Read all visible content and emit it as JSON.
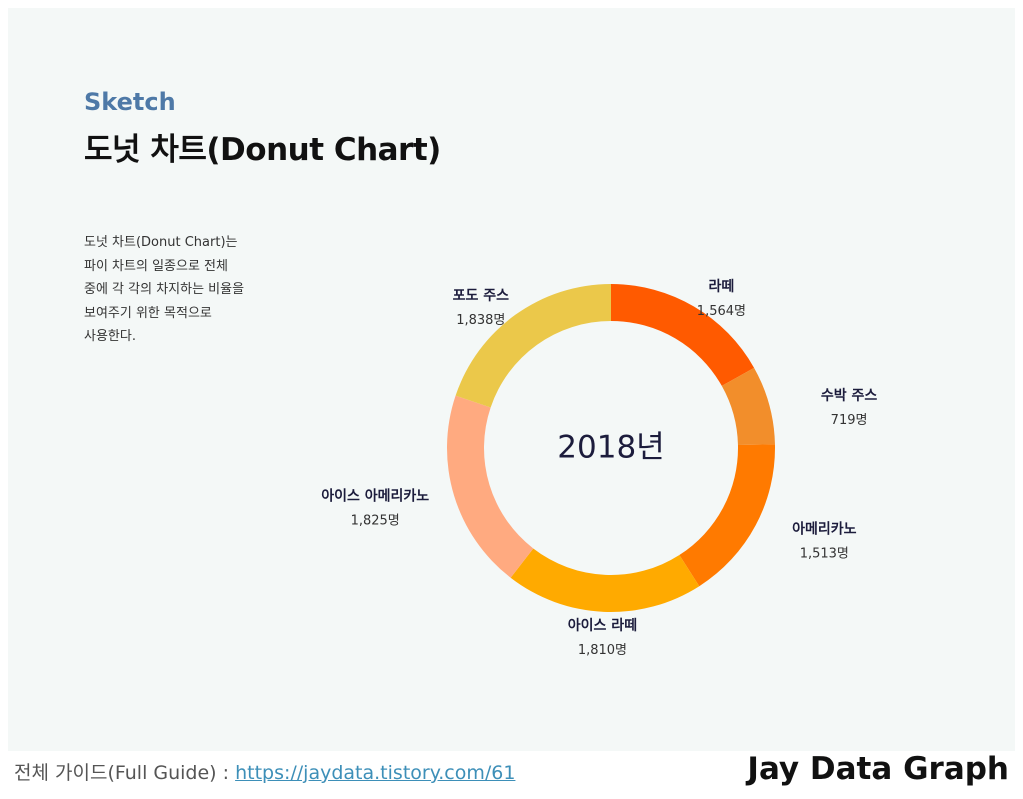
{
  "header": {
    "kicker": "Sketch",
    "title": "도넛 차트(Donut Chart)"
  },
  "description": {
    "lines": [
      "도넛 차트(Donut Chart)는",
      "파이 차트의 일종으로 전체",
      "중에 각 각의 차지하는 비율을",
      "보여주기 위한 목적으로",
      "사용한다."
    ]
  },
  "chart_data": {
    "type": "pie",
    "variant": "donut",
    "center_label": "2018년",
    "unit": "명",
    "slices": [
      {
        "name": "라떼",
        "value": 1564,
        "value_label": "1,564명",
        "color": "#ff5a00"
      },
      {
        "name": "수박 주스",
        "value": 719,
        "value_label": "719명",
        "color": "#f28e2b"
      },
      {
        "name": "아메리카노",
        "value": 1513,
        "value_label": "1,513명",
        "color": "#ff7a00"
      },
      {
        "name": "아이스 라떼",
        "value": 1810,
        "value_label": "1,810명",
        "color": "#ffaa00"
      },
      {
        "name": "아이스 아메리카노",
        "value": 1825,
        "value_label": "1,825명",
        "color": "#ffaa80"
      },
      {
        "name": "포도 주스",
        "value": 1838,
        "value_label": "1,838명",
        "color": "#ebc84a"
      }
    ]
  },
  "footer": {
    "guide_label": "전체 가이드(Full Guide) : ",
    "guide_link": "https://jaydata.tistory.com/61",
    "brand": "Jay Data Graph"
  },
  "colors": {
    "panel_bg": "#f4f8f7",
    "accent": "#4e79a7",
    "link": "#3d8fb8",
    "label_text": "#1c1c3c"
  }
}
